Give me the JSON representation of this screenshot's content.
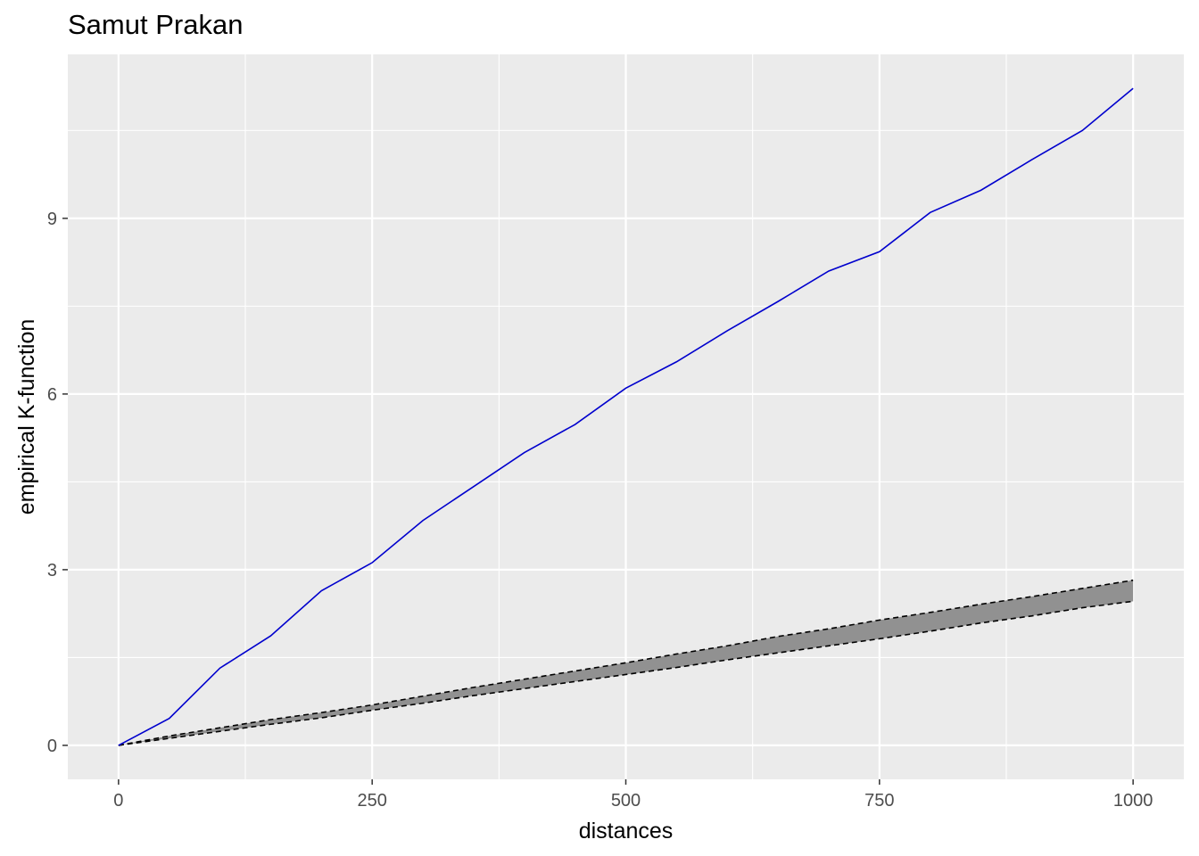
{
  "chart_data": {
    "type": "line",
    "title": "Samut Prakan",
    "xlabel": "distances",
    "ylabel": "empirical K-function",
    "xlim": [
      -50,
      1050
    ],
    "ylim": [
      -0.58,
      11.8
    ],
    "x_ticks": [
      0,
      250,
      500,
      750,
      1000
    ],
    "x_tick_labels": [
      "0",
      "250",
      "500",
      "750",
      "1000"
    ],
    "y_ticks": [
      0,
      3,
      6,
      9
    ],
    "y_tick_labels": [
      "0",
      "3",
      "6",
      "9"
    ],
    "grid": true,
    "legend": "none",
    "x": [
      0,
      50,
      100,
      150,
      200,
      250,
      300,
      350,
      400,
      450,
      500,
      550,
      600,
      650,
      700,
      750,
      800,
      850,
      900,
      950,
      1000
    ],
    "series": [
      {
        "role": "observed",
        "color": "#0000CD",
        "values": [
          0,
          0.46,
          1.32,
          1.87,
          2.64,
          3.12,
          3.84,
          4.42,
          5.0,
          5.48,
          6.1,
          6.55,
          7.08,
          7.58,
          8.1,
          8.43,
          9.1,
          9.48,
          10.0,
          10.5,
          11.22
        ]
      },
      {
        "role": "envelope-upper",
        "color": "#000000",
        "values": [
          0,
          0.16,
          0.3,
          0.44,
          0.56,
          0.69,
          0.84,
          0.99,
          1.13,
          1.27,
          1.41,
          1.56,
          1.7,
          1.86,
          1.99,
          2.14,
          2.27,
          2.41,
          2.54,
          2.68,
          2.82
        ]
      },
      {
        "role": "envelope-lower",
        "color": "#000000",
        "values": [
          0,
          0.12,
          0.24,
          0.36,
          0.47,
          0.6,
          0.72,
          0.85,
          0.97,
          1.09,
          1.21,
          1.33,
          1.46,
          1.58,
          1.7,
          1.82,
          1.95,
          2.09,
          2.21,
          2.35,
          2.46
        ]
      }
    ],
    "envelope_fill_color": "#919191",
    "panel_color": "#EBEBEB",
    "grid_color": "#FFFFFF"
  }
}
